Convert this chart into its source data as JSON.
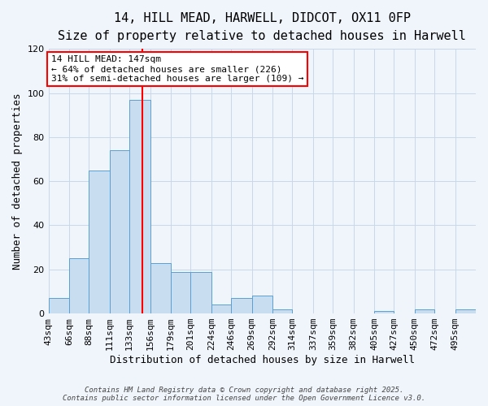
{
  "title": "14, HILL MEAD, HARWELL, DIDCOT, OX11 0FP",
  "subtitle": "Size of property relative to detached houses in Harwell",
  "xlabel": "Distribution of detached houses by size in Harwell",
  "ylabel": "Number of detached properties",
  "bin_labels": [
    "43sqm",
    "66sqm",
    "88sqm",
    "111sqm",
    "133sqm",
    "156sqm",
    "179sqm",
    "201sqm",
    "224sqm",
    "246sqm",
    "269sqm",
    "292sqm",
    "314sqm",
    "337sqm",
    "359sqm",
    "382sqm",
    "405sqm",
    "427sqm",
    "450sqm",
    "472sqm",
    "495sqm"
  ],
  "bin_edges": [
    43,
    66,
    88,
    111,
    133,
    156,
    179,
    201,
    224,
    246,
    269,
    292,
    314,
    337,
    359,
    382,
    405,
    427,
    450,
    472,
    495
  ],
  "bar_heights": [
    7,
    25,
    65,
    74,
    97,
    23,
    19,
    19,
    4,
    7,
    8,
    2,
    0,
    0,
    0,
    0,
    1,
    0,
    2,
    0,
    2
  ],
  "bar_color": "#c9ddf0",
  "bar_edge_color": "#5a9fd4",
  "vline_x": 147,
  "vline_color": "red",
  "annotation_line1": "14 HILL MEAD: 147sqm",
  "annotation_line2": "← 64% of detached houses are smaller (226)",
  "annotation_line3": "31% of semi-detached houses are larger (109) →",
  "annotation_box_color": "white",
  "annotation_box_edge_color": "red",
  "ylim": [
    0,
    120
  ],
  "yticks": [
    0,
    20,
    40,
    60,
    80,
    100,
    120
  ],
  "title_fontsize": 11,
  "subtitle_fontsize": 10,
  "axis_label_fontsize": 9,
  "tick_fontsize": 8,
  "annotation_fontsize": 8,
  "footer_text": "Contains HM Land Registry data © Crown copyright and database right 2025.\nContains public sector information licensed under the Open Government Licence v3.0.",
  "background_color": "#f0f5fc",
  "grid_color": "#c8d8ea"
}
